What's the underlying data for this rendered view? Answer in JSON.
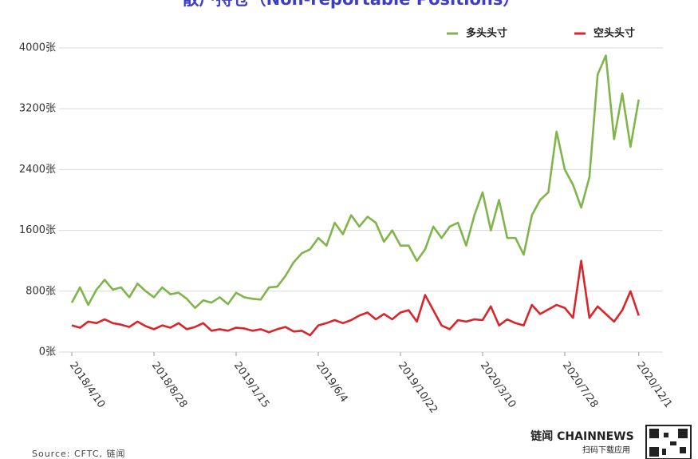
{
  "chart_data": {
    "type": "line",
    "title": "散户持仓（Non-reportable Positions）",
    "x": [
      "2018/4/10",
      "2018/4/24",
      "2018/5/8",
      "2018/5/22",
      "2018/6/5",
      "2018/6/19",
      "2018/7/3",
      "2018/7/17",
      "2018/7/31",
      "2018/8/14",
      "2018/8/28",
      "2018/9/11",
      "2018/9/25",
      "2018/10/9",
      "2018/10/23",
      "2018/11/6",
      "2018/11/20",
      "2018/12/4",
      "2018/12/18",
      "2019/1/1",
      "2019/1/15",
      "2019/1/29",
      "2019/2/12",
      "2019/2/26",
      "2019/3/12",
      "2019/3/26",
      "2019/4/9",
      "2019/4/23",
      "2019/5/7",
      "2019/5/21",
      "2019/6/4",
      "2019/6/18",
      "2019/7/2",
      "2019/7/16",
      "2019/7/30",
      "2019/8/13",
      "2019/8/27",
      "2019/9/10",
      "2019/9/24",
      "2019/10/8",
      "2019/10/22",
      "2019/11/5",
      "2019/11/19",
      "2019/12/3",
      "2019/12/17",
      "2019/12/31",
      "2020/1/14",
      "2020/1/28",
      "2020/2/11",
      "2020/2/25",
      "2020/3/10",
      "2020/3/24",
      "2020/4/7",
      "2020/4/21",
      "2020/5/5",
      "2020/5/19",
      "2020/6/2",
      "2020/6/16",
      "2020/6/30",
      "2020/7/14",
      "2020/7/28",
      "2020/8/11",
      "2020/8/25",
      "2020/9/8",
      "2020/9/22",
      "2020/10/6",
      "2020/10/20",
      "2020/11/3",
      "2020/11/17",
      "2020/12/1"
    ],
    "series": [
      {
        "name": "多头头寸",
        "color": "#7fb54a",
        "values": [
          650,
          850,
          620,
          820,
          950,
          820,
          850,
          720,
          900,
          800,
          720,
          850,
          760,
          780,
          700,
          580,
          680,
          650,
          720,
          630,
          780,
          720,
          700,
          690,
          850,
          860,
          1000,
          1180,
          1300,
          1350,
          1500,
          1400,
          1700,
          1550,
          1800,
          1650,
          1780,
          1700,
          1450,
          1600,
          1400,
          1400,
          1200,
          1350,
          1650,
          1500,
          1650,
          1700,
          1400,
          1800,
          2100,
          1600,
          2000,
          1500,
          1500,
          1280,
          1800,
          2000,
          2100,
          2900,
          2400,
          2200,
          1900,
          2300,
          3650,
          3900,
          2800,
          3400,
          2700,
          3320
        ]
      },
      {
        "name": "空头头寸",
        "color": "#d8262b",
        "values": [
          350,
          320,
          400,
          380,
          430,
          380,
          360,
          330,
          400,
          340,
          300,
          350,
          320,
          380,
          300,
          330,
          380,
          280,
          300,
          280,
          320,
          310,
          280,
          300,
          260,
          300,
          330,
          270,
          280,
          220,
          350,
          380,
          420,
          380,
          420,
          480,
          520,
          430,
          500,
          430,
          520,
          550,
          400,
          750,
          550,
          350,
          300,
          420,
          400,
          430,
          420,
          600,
          350,
          430,
          380,
          350,
          620,
          500,
          560,
          620,
          580,
          450,
          1200,
          450,
          600,
          500,
          400,
          550,
          800,
          480
        ]
      }
    ],
    "xticks": [
      "2018/4/10",
      "2018/8/28",
      "2019/1/15",
      "2019/6/4",
      "2019/10/22",
      "2020/3/10",
      "2020/7/28",
      "2020/12/1"
    ],
    "ylim": [
      0,
      4000
    ],
    "yticks": [
      {
        "value": 0,
        "label": "0张"
      },
      {
        "value": 800,
        "label": "800张"
      },
      {
        "value": 1600,
        "label": "1600张"
      },
      {
        "value": 2400,
        "label": "2400张"
      },
      {
        "value": 3200,
        "label": "3200张"
      },
      {
        "value": 4000,
        "label": "4000张"
      }
    ],
    "grid": true,
    "legend": "top-right",
    "source": "Source: CFTC, 链闻",
    "brand": "链闻 CHAINNEWS",
    "brand_sub": "扫码下载应用"
  }
}
